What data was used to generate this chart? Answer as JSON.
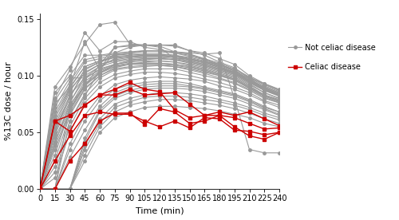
{
  "time_points": [
    0,
    15,
    30,
    45,
    60,
    75,
    90,
    105,
    120,
    135,
    150,
    165,
    180,
    195,
    210,
    225,
    240
  ],
  "celiac_curves": [
    [
      0.0,
      0.06,
      0.065,
      0.074,
      0.083,
      0.088,
      0.094,
      0.088,
      0.086,
      0.07,
      0.063,
      0.065,
      0.065,
      0.063,
      0.058,
      0.053,
      0.054
    ],
    [
      0.0,
      0.06,
      0.051,
      0.074,
      0.083,
      0.083,
      0.088,
      0.083,
      0.084,
      0.085,
      0.075,
      0.065,
      0.068,
      0.065,
      0.068,
      0.062,
      0.056
    ],
    [
      0.0,
      0.025,
      0.047,
      0.065,
      0.068,
      0.066,
      0.066,
      0.06,
      0.055,
      0.06,
      0.054,
      0.063,
      0.062,
      0.052,
      0.051,
      0.048,
      0.05
    ],
    [
      0.0,
      0.0,
      0.025,
      0.04,
      0.06,
      0.067,
      0.067,
      0.057,
      0.071,
      0.068,
      0.058,
      0.06,
      0.065,
      0.055,
      0.047,
      0.044,
      0.05
    ]
  ],
  "normal_curves": [
    [
      0.0,
      0.075,
      0.09,
      0.13,
      0.105,
      0.125,
      0.127,
      0.127,
      0.125,
      0.115,
      0.115,
      0.112,
      0.11,
      0.105,
      0.095,
      0.09,
      0.085
    ],
    [
      0.0,
      0.08,
      0.105,
      0.138,
      0.122,
      0.13,
      0.13,
      0.125,
      0.123,
      0.12,
      0.118,
      0.115,
      0.108,
      0.102,
      0.098,
      0.093,
      0.088
    ],
    [
      0.0,
      0.0,
      0.075,
      0.09,
      0.11,
      0.125,
      0.126,
      0.127,
      0.127,
      0.127,
      0.122,
      0.12,
      0.115,
      0.11,
      0.1,
      0.093,
      0.087
    ],
    [
      0.0,
      0.0,
      0.06,
      0.082,
      0.105,
      0.12,
      0.125,
      0.127,
      0.127,
      0.126,
      0.122,
      0.118,
      0.112,
      0.107,
      0.098,
      0.088,
      0.082
    ],
    [
      0.0,
      0.05,
      0.08,
      0.106,
      0.112,
      0.118,
      0.12,
      0.122,
      0.122,
      0.121,
      0.119,
      0.114,
      0.11,
      0.104,
      0.097,
      0.089,
      0.084
    ],
    [
      0.0,
      0.04,
      0.076,
      0.1,
      0.108,
      0.115,
      0.117,
      0.117,
      0.117,
      0.117,
      0.114,
      0.112,
      0.107,
      0.103,
      0.095,
      0.087,
      0.083
    ],
    [
      0.0,
      0.03,
      0.07,
      0.092,
      0.102,
      0.11,
      0.113,
      0.114,
      0.115,
      0.114,
      0.111,
      0.108,
      0.104,
      0.1,
      0.093,
      0.085,
      0.08
    ],
    [
      0.0,
      0.025,
      0.065,
      0.088,
      0.1,
      0.107,
      0.11,
      0.112,
      0.113,
      0.112,
      0.109,
      0.106,
      0.102,
      0.098,
      0.091,
      0.083,
      0.079
    ],
    [
      0.0,
      0.02,
      0.06,
      0.084,
      0.098,
      0.105,
      0.107,
      0.108,
      0.109,
      0.108,
      0.106,
      0.103,
      0.1,
      0.096,
      0.089,
      0.082,
      0.077
    ],
    [
      0.0,
      0.015,
      0.055,
      0.08,
      0.094,
      0.101,
      0.104,
      0.106,
      0.106,
      0.106,
      0.103,
      0.1,
      0.097,
      0.093,
      0.087,
      0.08,
      0.076
    ],
    [
      0.0,
      0.01,
      0.05,
      0.076,
      0.09,
      0.098,
      0.101,
      0.103,
      0.103,
      0.102,
      0.1,
      0.097,
      0.094,
      0.09,
      0.085,
      0.078,
      0.074
    ],
    [
      0.0,
      0.05,
      0.083,
      0.098,
      0.108,
      0.112,
      0.114,
      0.115,
      0.115,
      0.114,
      0.112,
      0.109,
      0.105,
      0.101,
      0.094,
      0.087,
      0.082
    ],
    [
      0.0,
      0.058,
      0.088,
      0.102,
      0.11,
      0.114,
      0.116,
      0.117,
      0.117,
      0.116,
      0.113,
      0.11,
      0.106,
      0.102,
      0.095,
      0.088,
      0.083
    ],
    [
      0.0,
      0.045,
      0.073,
      0.095,
      0.104,
      0.109,
      0.111,
      0.111,
      0.111,
      0.11,
      0.108,
      0.105,
      0.101,
      0.097,
      0.09,
      0.083,
      0.078
    ],
    [
      0.0,
      0.035,
      0.067,
      0.089,
      0.1,
      0.106,
      0.108,
      0.109,
      0.109,
      0.108,
      0.105,
      0.102,
      0.098,
      0.094,
      0.088,
      0.081,
      0.076
    ],
    [
      0.0,
      0.068,
      0.092,
      0.112,
      0.115,
      0.118,
      0.119,
      0.119,
      0.119,
      0.118,
      0.116,
      0.113,
      0.109,
      0.104,
      0.097,
      0.09,
      0.085
    ],
    [
      0.0,
      0.072,
      0.095,
      0.114,
      0.117,
      0.119,
      0.12,
      0.121,
      0.121,
      0.12,
      0.117,
      0.114,
      0.11,
      0.105,
      0.098,
      0.091,
      0.086
    ],
    [
      0.0,
      0.055,
      0.086,
      0.105,
      0.112,
      0.116,
      0.117,
      0.118,
      0.118,
      0.117,
      0.114,
      0.111,
      0.107,
      0.102,
      0.095,
      0.088,
      0.083
    ],
    [
      0.0,
      0.062,
      0.089,
      0.108,
      0.113,
      0.117,
      0.118,
      0.119,
      0.119,
      0.118,
      0.115,
      0.112,
      0.108,
      0.103,
      0.096,
      0.089,
      0.084
    ],
    [
      0.0,
      0.038,
      0.069,
      0.091,
      0.102,
      0.108,
      0.11,
      0.11,
      0.11,
      0.109,
      0.107,
      0.104,
      0.1,
      0.096,
      0.089,
      0.082,
      0.077
    ],
    [
      0.0,
      0.085,
      0.1,
      0.118,
      0.118,
      0.12,
      0.121,
      0.122,
      0.122,
      0.121,
      0.119,
      0.115,
      0.111,
      0.106,
      0.099,
      0.092,
      0.087
    ],
    [
      0.0,
      0.0,
      0.04,
      0.065,
      0.082,
      0.092,
      0.096,
      0.098,
      0.099,
      0.098,
      0.097,
      0.095,
      0.091,
      0.088,
      0.083,
      0.077,
      0.072
    ],
    [
      0.0,
      0.0,
      0.035,
      0.06,
      0.078,
      0.088,
      0.092,
      0.094,
      0.095,
      0.095,
      0.093,
      0.09,
      0.087,
      0.084,
      0.079,
      0.073,
      0.068
    ],
    [
      0.0,
      0.0,
      0.0,
      0.045,
      0.07,
      0.082,
      0.087,
      0.09,
      0.091,
      0.091,
      0.09,
      0.088,
      0.085,
      0.082,
      0.077,
      0.071,
      0.066
    ],
    [
      0.0,
      0.0,
      0.0,
      0.038,
      0.062,
      0.075,
      0.08,
      0.083,
      0.085,
      0.085,
      0.084,
      0.082,
      0.079,
      0.076,
      0.072,
      0.067,
      0.063
    ],
    [
      0.0,
      0.0,
      0.0,
      0.03,
      0.055,
      0.068,
      0.074,
      0.077,
      0.079,
      0.079,
      0.078,
      0.076,
      0.074,
      0.071,
      0.067,
      0.062,
      0.058
    ],
    [
      0.0,
      0.0,
      0.0,
      0.025,
      0.05,
      0.063,
      0.068,
      0.072,
      0.073,
      0.073,
      0.072,
      0.071,
      0.069,
      0.066,
      0.063,
      0.058,
      0.055
    ],
    [
      0.0,
      0.042,
      0.071,
      0.093,
      0.103,
      0.108,
      0.11,
      0.111,
      0.111,
      0.11,
      0.108,
      0.105,
      0.101,
      0.097,
      0.09,
      0.083,
      0.078
    ],
    [
      0.0,
      0.048,
      0.077,
      0.097,
      0.106,
      0.11,
      0.112,
      0.113,
      0.113,
      0.112,
      0.11,
      0.107,
      0.103,
      0.099,
      0.092,
      0.085,
      0.08
    ],
    [
      0.0,
      0.0,
      0.0,
      0.035,
      0.058,
      0.072,
      0.077,
      0.081,
      0.082,
      0.082,
      0.081,
      0.079,
      0.077,
      0.074,
      0.07,
      0.065,
      0.061
    ],
    [
      0.0,
      0.0,
      0.0,
      0.042,
      0.068,
      0.08,
      0.085,
      0.088,
      0.089,
      0.089,
      0.088,
      0.086,
      0.083,
      0.08,
      0.075,
      0.07,
      0.065
    ],
    [
      0.0,
      0.0,
      0.028,
      0.052,
      0.073,
      0.085,
      0.09,
      0.092,
      0.093,
      0.093,
      0.091,
      0.089,
      0.086,
      0.083,
      0.078,
      0.072,
      0.068
    ],
    [
      0.0,
      0.09,
      0.108,
      0.128,
      0.145,
      0.147,
      0.128,
      0.127,
      0.126,
      0.121,
      0.12,
      0.119,
      0.12,
      0.08,
      0.035,
      0.032,
      0.032
    ],
    [
      0.0,
      0.078,
      0.098,
      0.098,
      0.105,
      0.11,
      0.113,
      0.115,
      0.115,
      0.114,
      0.112,
      0.109,
      0.105,
      0.101,
      0.094,
      0.087,
      0.082
    ],
    [
      0.0,
      0.065,
      0.09,
      0.108,
      0.113,
      0.116,
      0.117,
      0.118,
      0.118,
      0.117,
      0.115,
      0.112,
      0.108,
      0.103,
      0.096,
      0.089,
      0.084
    ],
    [
      0.0,
      0.053,
      0.082,
      0.103,
      0.11,
      0.113,
      0.115,
      0.116,
      0.116,
      0.115,
      0.113,
      0.11,
      0.106,
      0.102,
      0.095,
      0.088,
      0.083
    ]
  ],
  "gray_color": "#999999",
  "red_color": "#cc0000",
  "xlabel": "Time (min)",
  "ylabel": "%13C dose / hour",
  "xlim": [
    0,
    240
  ],
  "ylim": [
    0.0,
    0.155
  ],
  "yticks": [
    0.0,
    0.05,
    0.1,
    0.15
  ],
  "xticks": [
    0,
    15,
    30,
    45,
    60,
    75,
    90,
    105,
    120,
    135,
    150,
    165,
    180,
    195,
    210,
    225,
    240
  ],
  "legend_gray_label": "Not celiac disease",
  "legend_red_label": "Celiac disease",
  "marker_size": 2.5,
  "linewidth": 0.8,
  "bg_color": "#ffffff"
}
